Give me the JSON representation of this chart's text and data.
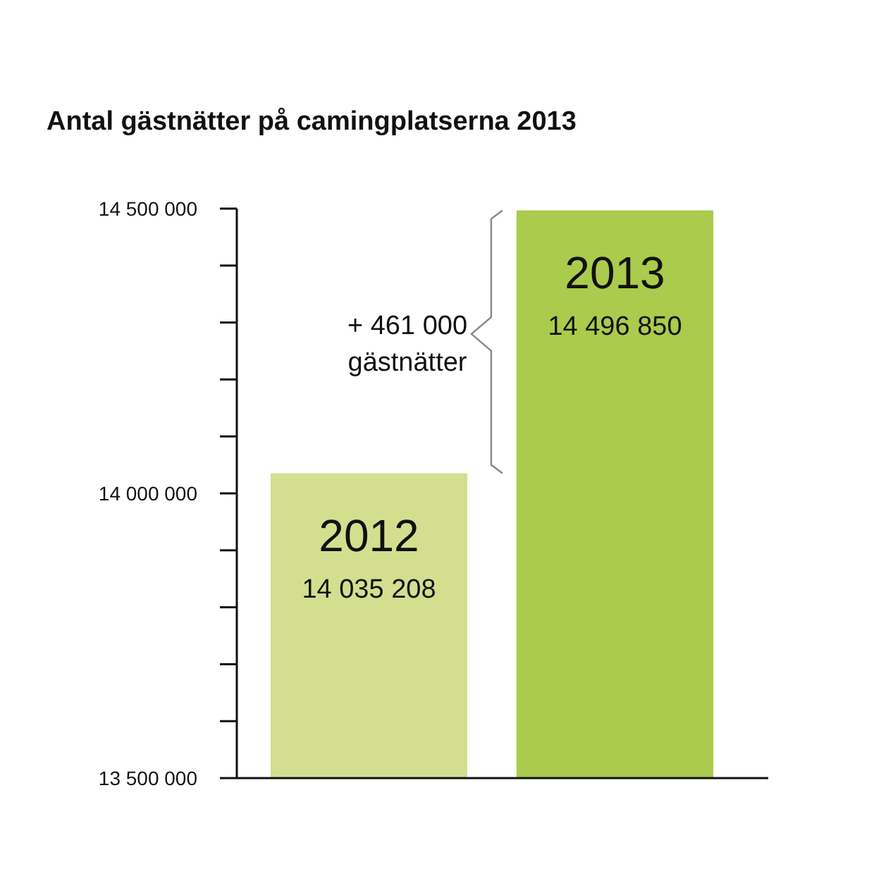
{
  "chart_data": {
    "type": "bar",
    "title": "Antal gästnätter på camingplatserna 2013",
    "categories": [
      "2012",
      "2013"
    ],
    "values": [
      14035208,
      14496850
    ],
    "value_labels": [
      "14 035 208",
      "14 496 850"
    ],
    "colors": [
      "#d3df8f",
      "#aacb4b"
    ],
    "ylim": [
      13500000,
      14500000
    ],
    "yticks": [
      {
        "value": 13500000,
        "label": "13 500 000"
      },
      {
        "value": 13600000,
        "label": null
      },
      {
        "value": 13700000,
        "label": null
      },
      {
        "value": 13800000,
        "label": null
      },
      {
        "value": 13900000,
        "label": null
      },
      {
        "value": 14000000,
        "label": "14 000 000"
      },
      {
        "value": 14100000,
        "label": null
      },
      {
        "value": 14200000,
        "label": null
      },
      {
        "value": 14300000,
        "label": null
      },
      {
        "value": 14400000,
        "label": null
      },
      {
        "value": 14500000,
        "label": "14 500 000"
      }
    ],
    "annotations": [
      "+ 461 000\ngästnätter"
    ],
    "grid": false
  }
}
